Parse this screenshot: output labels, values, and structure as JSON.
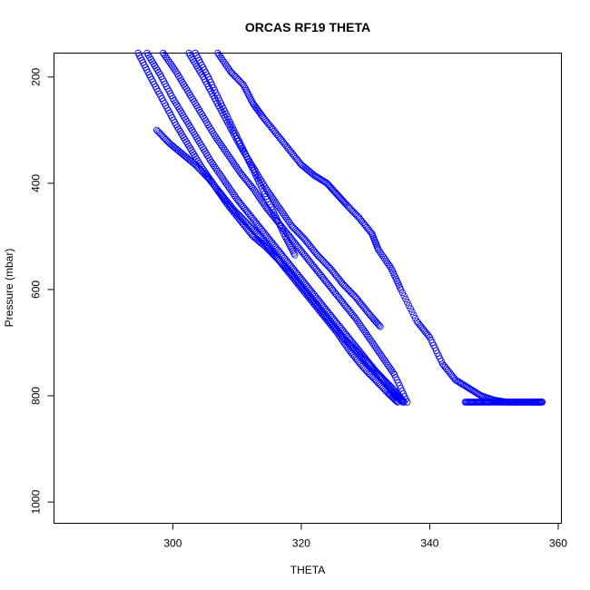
{
  "chart_data": {
    "type": "scatter",
    "title": "ORCAS RF19 THETA",
    "xlabel": "THETA",
    "ylabel": "Pressure (mbar)",
    "xlim": [
      281.5,
      360.5
    ],
    "ylim": [
      1040,
      155
    ],
    "y_reversed": true,
    "grid": false,
    "legend": "none",
    "marker": "open-circle",
    "colors": {
      "points": "#0000ff",
      "frame": "#000000",
      "background": "#ffffff"
    },
    "xticks": [
      300,
      320,
      340,
      360
    ],
    "yticks": [
      200,
      400,
      600,
      800,
      1000
    ],
    "profiles": [
      {
        "theta": [
          294.6,
          296.5,
          298.5,
          300.5,
          302.5,
          304.5,
          306.5,
          308.5,
          310.5,
          312.5,
          314.5,
          316.5,
          318.5,
          320.5,
          322.5,
          324.5,
          326.5,
          328.5,
          330.5,
          332.5,
          334.5,
          336.0
        ],
        "pressure": [
          155,
          200,
          245,
          290,
          330,
          370,
          405,
          440,
          470,
          500,
          520,
          545,
          570,
          600,
          630,
          660,
          690,
          715,
          740,
          765,
          790,
          812
        ]
      },
      {
        "theta": [
          296.0,
          298.0,
          300.0,
          302.0,
          304.0,
          306.0,
          308.0,
          310.0,
          312.0,
          314.0,
          316.0,
          318.0,
          320.0,
          322.0,
          324.0,
          326.0,
          328.0,
          330.0,
          332.0,
          334.0,
          335.8
        ],
        "pressure": [
          155,
          195,
          240,
          280,
          320,
          360,
          395,
          430,
          460,
          490,
          520,
          550,
          580,
          610,
          640,
          670,
          700,
          730,
          760,
          790,
          812
        ]
      },
      {
        "theta": [
          298.5,
          300.5,
          302.5,
          304.5,
          306.5,
          308.5,
          310.5,
          312.5,
          314.5,
          316.5,
          318.5,
          320.5,
          322.5,
          324.5,
          326.5,
          328.5,
          330.5,
          332.5,
          334.5,
          336.5
        ],
        "pressure": [
          155,
          190,
          230,
          270,
          310,
          345,
          380,
          410,
          445,
          475,
          505,
          535,
          565,
          595,
          625,
          655,
          690,
          725,
          760,
          812
        ]
      },
      {
        "theta": [
          302.5,
          304.5,
          306.5,
          308.5,
          310.5,
          312.5,
          314.5,
          316.5,
          318.5,
          320.5,
          322.5,
          324.5,
          326.5,
          328.5,
          330.5,
          332.3
        ],
        "pressure": [
          155,
          195,
          240,
          285,
          330,
          370,
          410,
          445,
          480,
          505,
          535,
          560,
          590,
          615,
          645,
          670
        ]
      },
      {
        "theta": [
          297.5,
          299.5,
          301.5,
          303.5,
          305.5,
          307.5,
          309.5,
          311.5,
          313.5,
          315.5,
          317.5,
          319.5,
          321.5,
          323.5,
          325.5,
          327.5,
          329.5,
          331.5,
          333.5,
          335.0
        ],
        "pressure": [
          300,
          325,
          345,
          365,
          390,
          420,
          450,
          475,
          500,
          530,
          560,
          590,
          620,
          650,
          680,
          715,
          745,
          770,
          795,
          812
        ]
      },
      {
        "theta": [
          303.5,
          305.5,
          307.5,
          309.5,
          311.5,
          313.5,
          315.5,
          317.5,
          319.0
        ],
        "pressure": [
          155,
          200,
          250,
          300,
          350,
          400,
          450,
          500,
          535
        ]
      },
      {
        "theta": [
          307.0,
          309.0,
          311.0,
          312.5,
          314.0,
          316.0,
          318.0,
          320.0,
          322.0,
          324.0,
          325.5,
          327.0,
          329.0,
          331.0,
          332.0,
          334.0,
          335.5,
          338.0,
          340.0,
          342.0,
          344.0,
          346.0,
          348.0,
          350.0,
          352.0,
          354.0,
          356.0,
          357.5
        ],
        "pressure": [
          155,
          190,
          215,
          250,
          275,
          305,
          335,
          365,
          385,
          400,
          420,
          440,
          465,
          495,
          525,
          560,
          600,
          660,
          690,
          740,
          770,
          785,
          800,
          808,
          812,
          812,
          812,
          812
        ]
      },
      {
        "theta": [
          345.5,
          347.0,
          348.5,
          350.0,
          352.0,
          354.0,
          356.0,
          357.5
        ],
        "pressure": [
          812,
          812,
          812,
          812,
          812,
          812,
          812,
          812
        ]
      }
    ]
  }
}
